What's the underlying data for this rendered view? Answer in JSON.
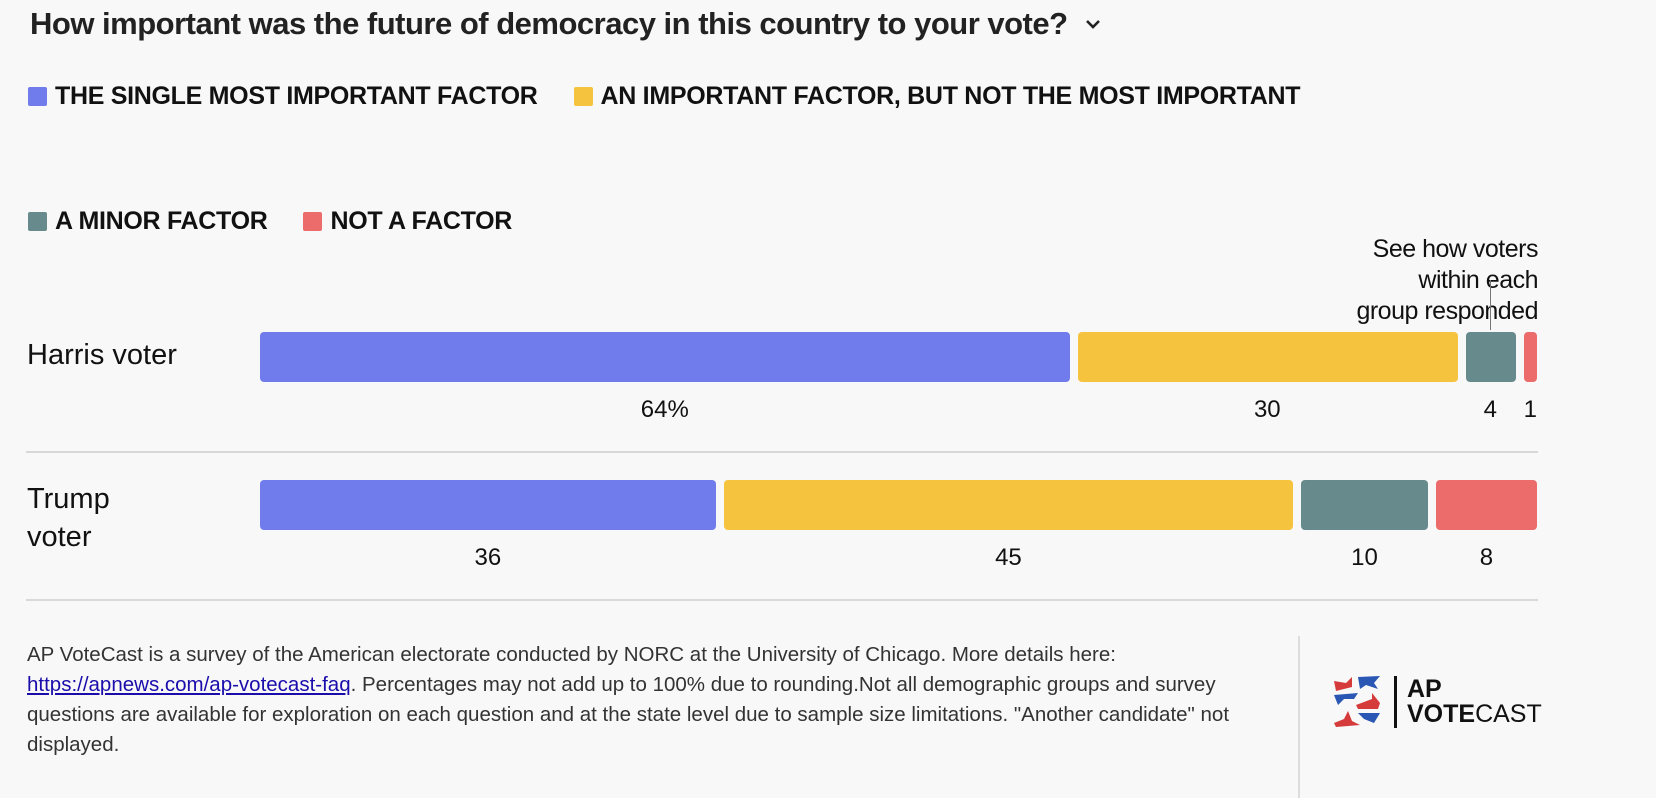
{
  "title": "How important was the future of democracy in this country to your vote?",
  "note": [
    "See how voters",
    "within each",
    "group responded"
  ],
  "chart_data": {
    "type": "bar",
    "orientation": "horizontal-stacked",
    "title": "How important was the future of democracy in this country to your vote?",
    "legend_placement": "top",
    "series": [
      {
        "name": "THE SINGLE MOST IMPORTANT FACTOR",
        "color": "#707ceb",
        "values": [
          64,
          36
        ]
      },
      {
        "name": "AN IMPORTANT FACTOR, BUT NOT THE MOST IMPORTANT",
        "color": "#f5c33e",
        "values": [
          30,
          45
        ]
      },
      {
        "name": "A MINOR FACTOR",
        "color": "#678b8c",
        "values": [
          4,
          10
        ]
      },
      {
        "name": "NOT A FACTOR",
        "color": "#ec6b6b",
        "values": [
          1,
          8
        ]
      }
    ],
    "categories": [
      "Harris voter",
      "Trump voter"
    ],
    "value_labels": [
      [
        "64%",
        "30",
        "4",
        "1"
      ],
      [
        "36",
        "45",
        "10",
        "8"
      ]
    ]
  },
  "footer": {
    "text1": "AP VoteCast is a survey of the American electorate conducted by NORC at the University of Chicago. More details here: ",
    "link": "https://apnews.com/ap-votecast-faq",
    "text2": ". Percentages may not add up to 100% due to rounding.Not all demographic groups and survey questions are available for exploration on each question and at the state level due to sample size limitations. \"Another candidate\" not displayed."
  },
  "logo": {
    "line1": "AP",
    "line2_bold": "VOTE",
    "line2_thin": "CAST"
  }
}
